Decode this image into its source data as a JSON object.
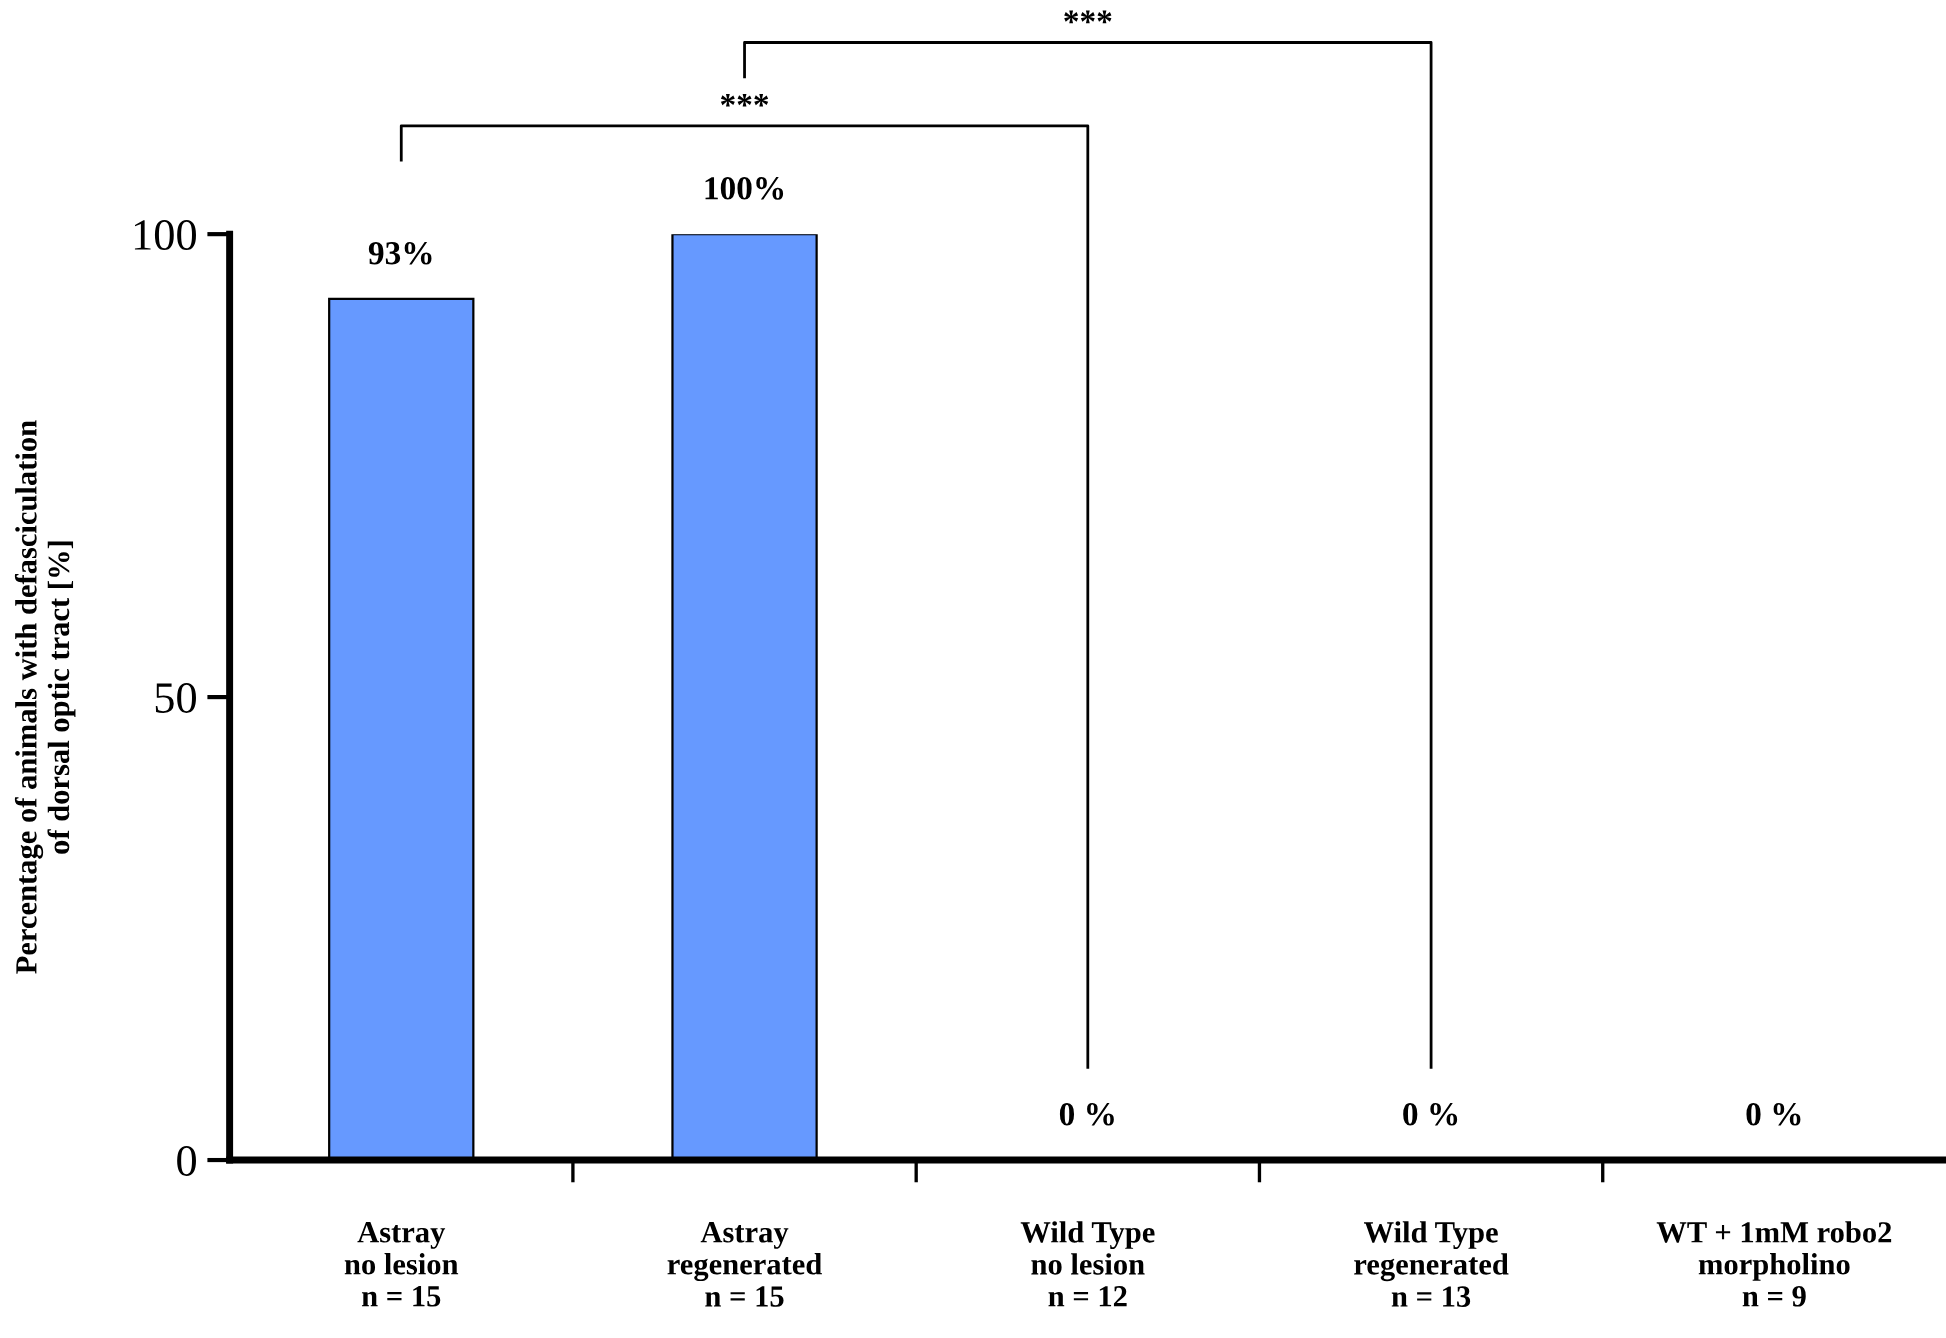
{
  "chart_data": {
    "type": "bar",
    "categories": [
      "Astray\nno lesion\nn = 15",
      "Astray\nregenerated\nn = 15",
      "Wild Type\nno lesion\nn = 12",
      "Wild Type\nregenerated\nn = 13",
      "WT + 1mM robo2\nmorpholino\nn = 9"
    ],
    "values": [
      93,
      100,
      0,
      0,
      0
    ],
    "value_labels": [
      "93%",
      "100%",
      "0 %",
      "0 %",
      "0 %"
    ],
    "color": "#6699ff",
    "ylabel": "Percentage of animals with defasciculation\nof dorsal optic tract [%]",
    "ylim": [
      0,
      100
    ],
    "yticks": [
      0,
      50,
      100
    ],
    "grid": false,
    "annotations": [
      "***",
      "***"
    ]
  }
}
